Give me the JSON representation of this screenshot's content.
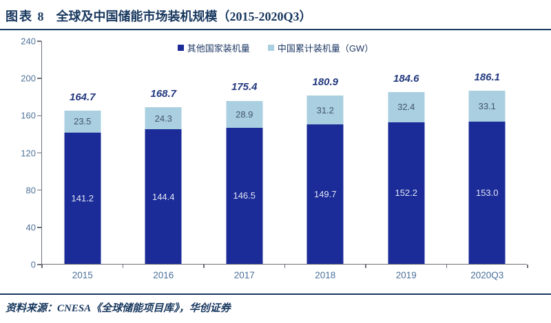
{
  "header": {
    "figure_label": "图表 8",
    "title": "全球及中国储能市场装机规模（2015-2020Q3）"
  },
  "chart_data": {
    "type": "bar",
    "stacked": true,
    "title": "全球及中国储能市场装机规模（2015-2020Q3）",
    "categories": [
      "2015",
      "2016",
      "2017",
      "2018",
      "2019",
      "2020Q3"
    ],
    "series": [
      {
        "name": "其他国家装机量",
        "color": "#1b2b97",
        "label_color": "#e2e7f5",
        "values": [
          141.2,
          144.4,
          146.5,
          149.7,
          152.2,
          153.0
        ]
      },
      {
        "name": "中国累计装机量（GW）",
        "color": "#a9cfe0",
        "label_color": "#44546a",
        "values": [
          23.5,
          24.3,
          28.9,
          31.2,
          32.4,
          33.1
        ]
      }
    ],
    "totals": [
      164.7,
      168.7,
      175.4,
      180.9,
      184.6,
      186.1
    ],
    "ylim": [
      0,
      240
    ],
    "ytick_step": 40,
    "yticks": [
      0,
      40,
      80,
      120,
      160,
      200,
      240
    ],
    "grid": false,
    "legend_position": "top-center",
    "value_decimals": 1
  },
  "footer": {
    "source": "资料来源：CNESA《全球储能项目库》，华创证券"
  },
  "colors": {
    "title_navy": "#17375e",
    "bar_dark": "#1b2b97",
    "bar_light": "#a9cfe0",
    "total_label": "#24397f",
    "axis_text": "#4f7299",
    "axis_line": "#6b6f76"
  }
}
